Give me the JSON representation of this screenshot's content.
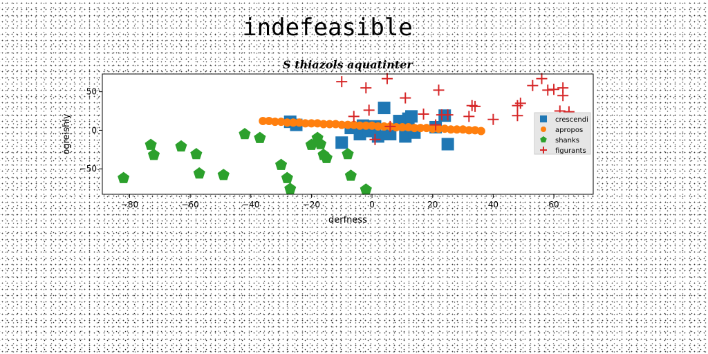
{
  "figure": {
    "suptitle": "indefeasible"
  },
  "chart_data": {
    "type": "scatter",
    "title": "S thiazols aquatinter",
    "xlabel": "derfness",
    "ylabel": "ogreishly",
    "xlim": [
      -89,
      73
    ],
    "ylim": [
      -83,
      73
    ],
    "xticks": [
      -80,
      -60,
      -40,
      -20,
      0,
      20,
      40,
      60
    ],
    "yticks": [
      -50,
      0,
      50
    ],
    "grid": false,
    "legend_position": "center-right",
    "series": [
      {
        "name": "crescendi",
        "marker": "square",
        "color": "#1f77b4",
        "points": [
          [
            -27,
            11
          ],
          [
            -25,
            7
          ],
          [
            -10,
            -16
          ],
          [
            -7,
            3
          ],
          [
            -4,
            -5
          ],
          [
            -3,
            6
          ],
          [
            -1,
            -1
          ],
          [
            1,
            5
          ],
          [
            2,
            -8
          ],
          [
            4,
            29
          ],
          [
            6,
            -5
          ],
          [
            9,
            12
          ],
          [
            11,
            -8
          ],
          [
            12,
            15
          ],
          [
            13,
            18
          ],
          [
            14,
            -3
          ],
          [
            21,
            4
          ],
          [
            24,
            19
          ],
          [
            25,
            -18
          ]
        ]
      },
      {
        "name": "apropos",
        "marker": "circle",
        "color": "#ff7f0e",
        "points": [
          [
            -36,
            12
          ],
          [
            -34,
            12
          ],
          [
            -32,
            11
          ],
          [
            -30,
            11
          ],
          [
            -28,
            10
          ],
          [
            -26,
            10
          ],
          [
            -24,
            10
          ],
          [
            -22,
            9
          ],
          [
            -20,
            9
          ],
          [
            -18,
            9
          ],
          [
            -16,
            8
          ],
          [
            -14,
            8
          ],
          [
            -12,
            8
          ],
          [
            -10,
            7
          ],
          [
            -8,
            7
          ],
          [
            -6,
            7
          ],
          [
            -4,
            6
          ],
          [
            -2,
            6
          ],
          [
            0,
            6
          ],
          [
            2,
            5
          ],
          [
            4,
            5
          ],
          [
            6,
            5
          ],
          [
            8,
            4
          ],
          [
            10,
            4
          ],
          [
            12,
            4
          ],
          [
            14,
            3
          ],
          [
            16,
            3
          ],
          [
            18,
            3
          ],
          [
            20,
            2
          ],
          [
            22,
            2
          ],
          [
            24,
            2
          ],
          [
            26,
            1
          ],
          [
            28,
            1
          ],
          [
            30,
            1
          ],
          [
            32,
            0
          ],
          [
            34,
            0
          ],
          [
            36,
            -1
          ]
        ]
      },
      {
        "name": "shanks",
        "marker": "pentagon",
        "color": "#2ca02c",
        "points": [
          [
            -82,
            -62
          ],
          [
            -73,
            -19
          ],
          [
            -72,
            -32
          ],
          [
            -63,
            -21
          ],
          [
            -58,
            -31
          ],
          [
            -57,
            -56
          ],
          [
            -49,
            -58
          ],
          [
            -42,
            -5
          ],
          [
            -37,
            -10
          ],
          [
            -30,
            -45
          ],
          [
            -28,
            -62
          ],
          [
            -27,
            -76
          ],
          [
            -20,
            -19
          ],
          [
            -18,
            -10
          ],
          [
            -17,
            -18
          ],
          [
            -16,
            -32
          ],
          [
            -15,
            -36
          ],
          [
            -8,
            -31
          ],
          [
            -7,
            -59
          ],
          [
            -2,
            -77
          ]
        ]
      },
      {
        "name": "figurants",
        "marker": "plus",
        "color": "#d62728",
        "points": [
          [
            -10,
            63
          ],
          [
            -6,
            18
          ],
          [
            -2,
            55
          ],
          [
            -1,
            26
          ],
          [
            1,
            -12
          ],
          [
            5,
            67
          ],
          [
            6,
            5
          ],
          [
            11,
            42
          ],
          [
            17,
            21
          ],
          [
            21,
            7
          ],
          [
            22,
            52
          ],
          [
            23,
            20
          ],
          [
            25,
            20
          ],
          [
            32,
            18
          ],
          [
            33,
            32
          ],
          [
            34,
            31
          ],
          [
            40,
            14
          ],
          [
            48,
            19
          ],
          [
            48,
            32
          ],
          [
            49,
            35
          ],
          [
            53,
            58
          ],
          [
            56,
            67
          ],
          [
            58,
            52
          ],
          [
            60,
            53
          ],
          [
            62,
            25
          ],
          [
            63,
            55
          ],
          [
            63,
            45
          ],
          [
            65,
            24
          ]
        ]
      }
    ]
  }
}
